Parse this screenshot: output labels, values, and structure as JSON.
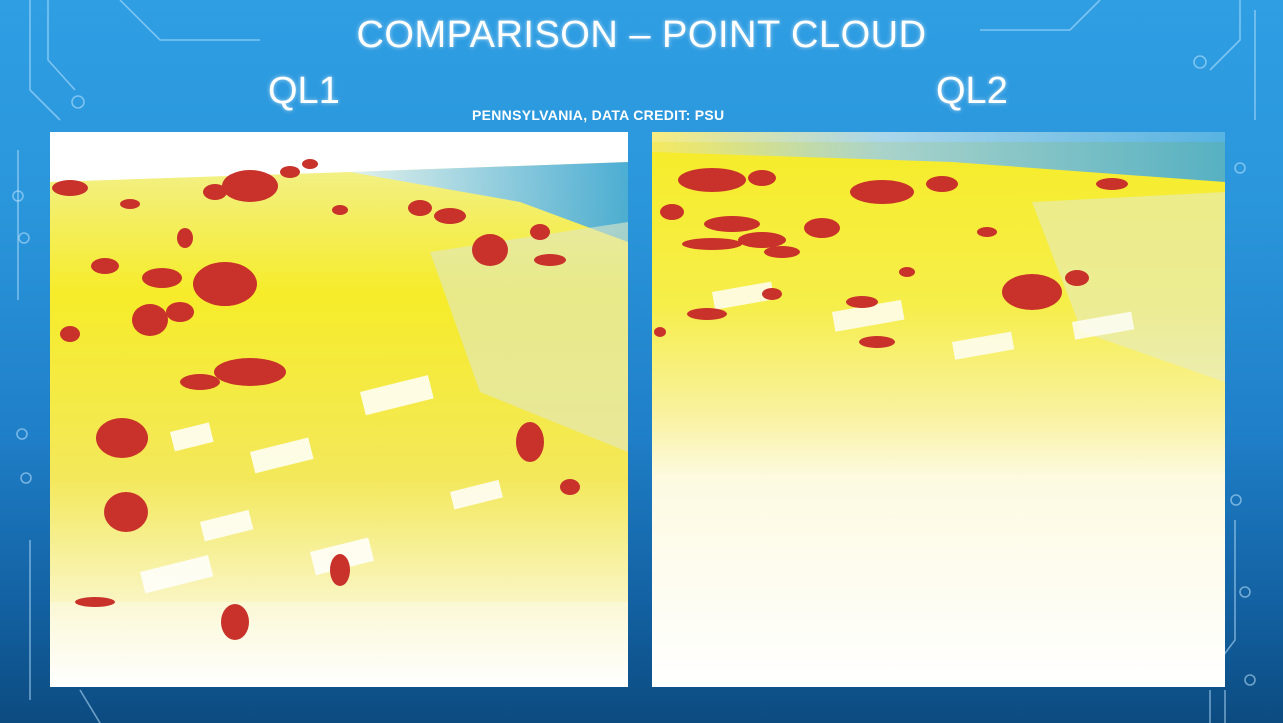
{
  "slide": {
    "title": "COMPARISON – POINT CLOUD",
    "credit": "PENNSYLVANIA, DATA CREDIT: PSU",
    "left_label": "QL1",
    "right_label": "QL2"
  },
  "colors": {
    "background_top": "#2f9ee3",
    "background_bottom": "#0c4b80",
    "ground_yellow": "#f6ec2a",
    "vegetation_red": "#c8322a",
    "water_blue": "#4fb1e0",
    "low_white": "#ffffff"
  }
}
